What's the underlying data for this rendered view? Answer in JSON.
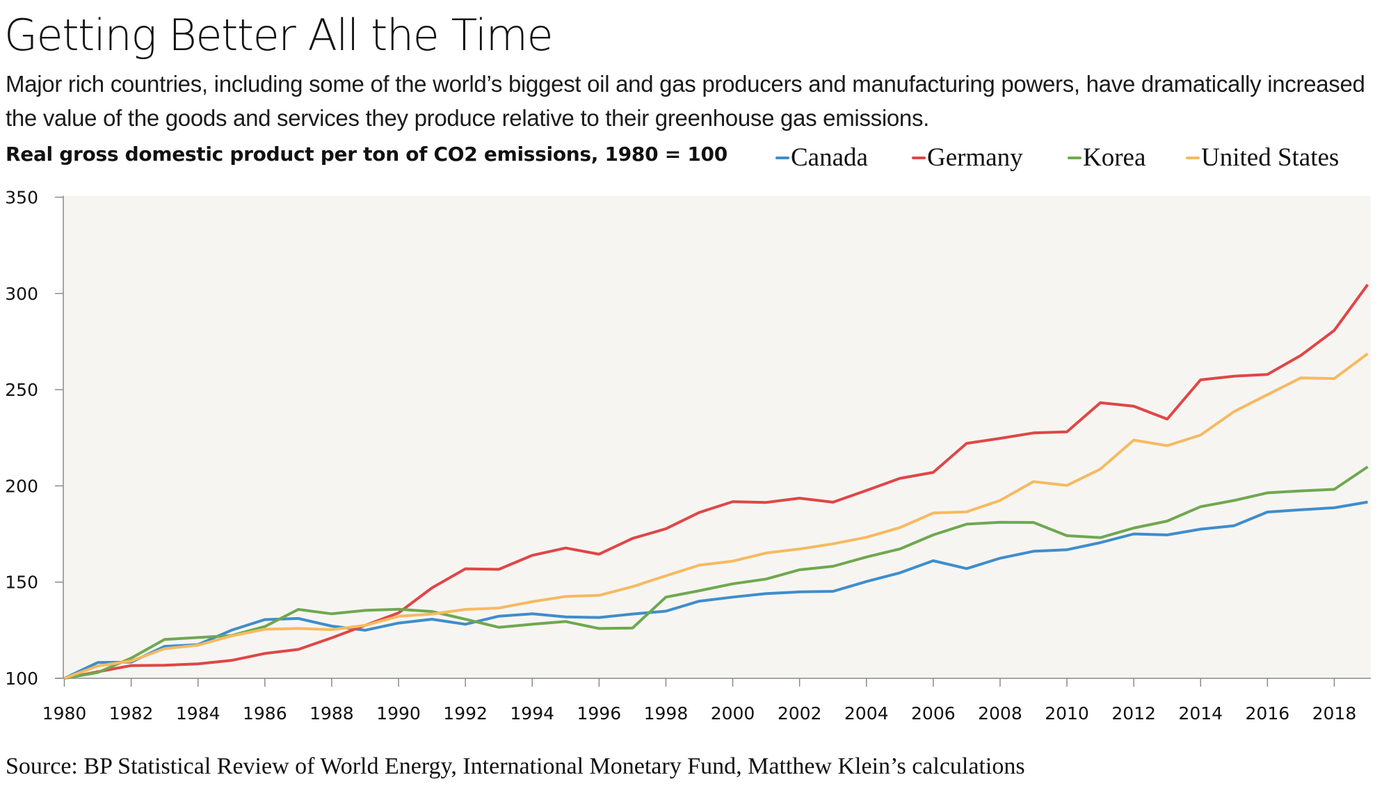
{
  "title": "Getting Better All the Time",
  "subtitle": "Major rich countries, including some of the world’s biggest oil and gas producers and manufacturing powers, have dramatically increased the value of the goods and services they produce relative to their greenhouse gas emissions.",
  "source": "Source: BP Statistical Review of World Energy, International Monetary Fund, Matthew Klein’s calculations",
  "chart_data": {
    "type": "line",
    "title": "Real gross domestic product per ton of CO2 emissions, 1980 = 100",
    "xlabel": "",
    "ylabel": "",
    "x": [
      1980,
      1981,
      1982,
      1983,
      1984,
      1985,
      1986,
      1987,
      1988,
      1989,
      1990,
      1991,
      1992,
      1993,
      1994,
      1995,
      1996,
      1997,
      1998,
      1999,
      2000,
      2001,
      2002,
      2003,
      2004,
      2005,
      2006,
      2007,
      2008,
      2009,
      2010,
      2011,
      2012,
      2013,
      2014,
      2015,
      2016,
      2017,
      2018,
      2019
    ],
    "xlim": [
      1980,
      2019
    ],
    "ylim": [
      100,
      350
    ],
    "yticks": [
      100,
      150,
      200,
      250,
      300,
      350
    ],
    "xticks": [
      1980,
      1982,
      1984,
      1986,
      1988,
      1990,
      1992,
      1994,
      1996,
      1998,
      2000,
      2002,
      2004,
      2006,
      2008,
      2010,
      2012,
      2014,
      2016,
      2018
    ],
    "grid": false,
    "legend_position": "top-right",
    "background": "#F6F5F2",
    "series": [
      {
        "name": "Canada",
        "color": "#3E8DCC",
        "values": [
          100,
          108.2,
          108.4,
          116.6,
          117.5,
          125,
          130.5,
          131.1,
          127.1,
          125,
          128.7,
          130.7,
          128.1,
          132.3,
          133.5,
          131.9,
          131.6,
          133.4,
          134.9,
          140.1,
          142.2,
          144,
          144.9,
          145.2,
          150.3,
          154.8,
          161.1,
          157,
          162.4,
          166,
          166.8,
          170.5,
          175,
          174.5,
          177.5,
          179.3,
          186.4,
          187.6,
          188.6,
          191.6
        ]
      },
      {
        "name": "Germany",
        "color": "#E04646",
        "values": [
          100,
          103.4,
          106.6,
          106.8,
          107.5,
          109.3,
          112.9,
          115,
          121,
          127.5,
          134,
          147,
          156.9,
          156.6,
          163.9,
          167.7,
          164.5,
          172.7,
          177.7,
          186.2,
          191.8,
          191.4,
          193.6,
          191.5,
          197.6,
          203.9,
          207,
          222.1,
          224.7,
          227.5,
          228.1,
          243.2,
          241.4,
          234.7,
          255.1,
          257,
          257.9,
          267.8,
          280.8,
          304.6
        ]
      },
      {
        "name": "Korea",
        "color": "#6FA84F",
        "values": [
          100,
          103,
          110.5,
          120.2,
          121.2,
          122.2,
          126.9,
          135.8,
          133.5,
          135.3,
          135.9,
          134.7,
          130.7,
          126.5,
          128.1,
          129.5,
          125.9,
          126.1,
          142.2,
          145.5,
          149.1,
          151.6,
          156.4,
          158.2,
          163,
          167.2,
          174.5,
          180.1,
          181.1,
          181,
          174.1,
          173.1,
          178.1,
          181.7,
          189.2,
          192.4,
          196.4,
          197.4,
          198.2,
          209.9
        ]
      },
      {
        "name": "United States",
        "color": "#F6BA60",
        "values": [
          100,
          106.4,
          109,
          115.4,
          117.2,
          122,
          125.5,
          125.9,
          125.3,
          127.5,
          132.2,
          133.4,
          135.8,
          136.5,
          139.8,
          142.5,
          143.1,
          147.6,
          153.3,
          158.8,
          160.9,
          165.1,
          167.2,
          169.9,
          173.3,
          178.3,
          185.9,
          186.5,
          192.4,
          202.2,
          200.2,
          208.7,
          223.8,
          220.9,
          226.4,
          238.6,
          247.4,
          256.1,
          255.8,
          268.7
        ]
      }
    ]
  }
}
